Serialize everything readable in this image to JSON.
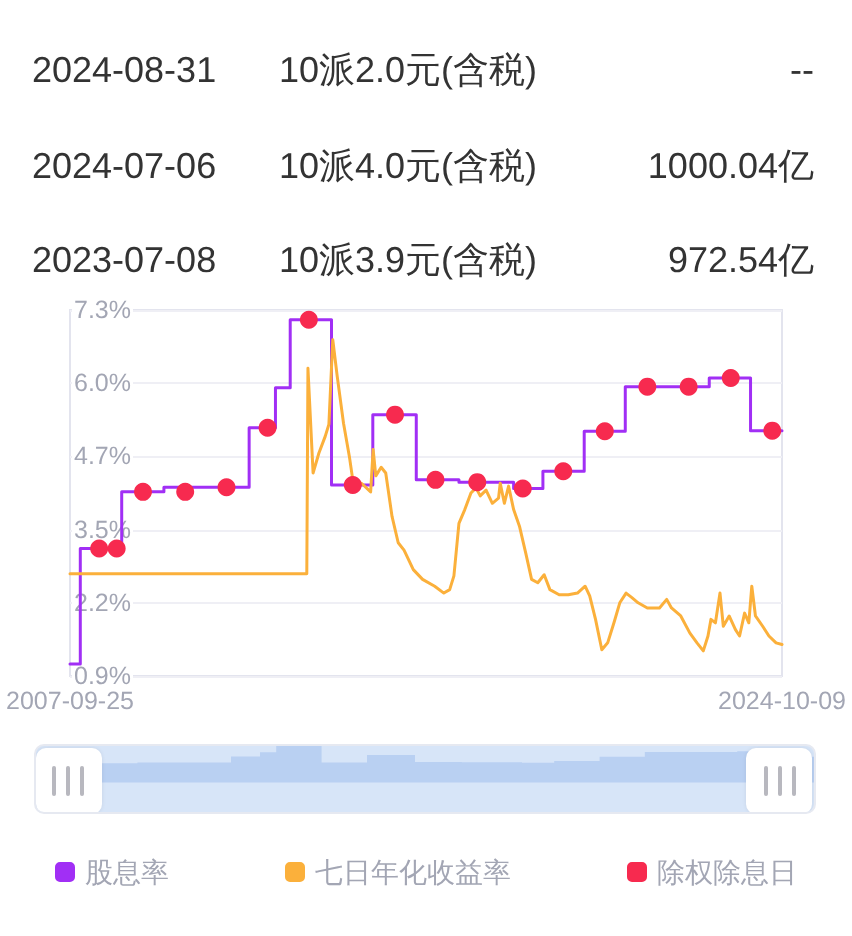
{
  "chart_data": [
    {
      "type": "other",
      "annotations": [
        "2024-08-31",
        "10派2.0元(含税)",
        "--",
        "2024-07-06",
        "10派4.0元(含税)",
        "1000.04亿",
        "2023-07-08",
        "10派3.9元(含税)",
        "972.54亿"
      ]
    },
    {
      "type": "line",
      "xlim": [
        "2007-09-25",
        "2024-10-09"
      ],
      "xticks": [
        "2007-09-25",
        "2024-10-09"
      ],
      "ylim": [
        0.9,
        7.3
      ],
      "yticks": [
        {
          "value": 0.9,
          "label": "0.9%"
        },
        {
          "value": 2.18,
          "label": "2.2%"
        },
        {
          "value": 3.46,
          "label": "3.5%"
        },
        {
          "value": 4.74,
          "label": "4.7%"
        },
        {
          "value": 6.02,
          "label": "6.0%"
        },
        {
          "value": 7.3,
          "label": "7.3%"
        }
      ],
      "grid": "y",
      "legend": "bottom",
      "series": [
        {
          "name": "股息率",
          "type": "step",
          "color": "#a12ff5",
          "x": [
            "2007-09-25",
            "2007-12-24",
            "2008-12-20",
            "2009-12-24",
            "2012-01-08",
            "2012-08-25",
            "2013-01-01",
            "2013-12-28",
            "2014-12-24",
            "2016-01-08",
            "2017-01-15",
            "2018-05-08",
            "2019-01-19",
            "2020-01-15",
            "2021-01-08",
            "2023-01-12",
            "2024-01-08",
            "2024-10-09"
          ],
          "values": [
            1.11,
            3.13,
            4.12,
            4.2,
            5.24,
            5.94,
            7.13,
            4.24,
            5.47,
            4.33,
            4.29,
            4.18,
            4.48,
            5.18,
            5.96,
            6.11,
            5.19,
            5.19
          ]
        },
        {
          "name": "七日年化收益率",
          "type": "line",
          "color": "#fbb03b",
          "x": [
            "2007-09-25",
            "2013-05-26",
            "2013-06-05",
            "2013-07-20",
            "2013-09-09",
            "2013-11-03",
            "2013-12-05",
            "2014-01-08",
            "2014-02-16",
            "2014-04-12",
            "2014-06-02",
            "2014-07-02",
            "2014-09-16",
            "2014-12-05",
            "2014-12-27",
            "2015-01-19",
            "2015-03-07",
            "2015-04-16",
            "2015-06-10",
            "2015-08-03",
            "2015-09-23",
            "2015-12-13",
            "2016-03-03",
            "2016-06-17",
            "2016-09-05",
            "2016-10-26",
            "2016-12-02",
            "2017-01-15",
            "2017-03-07",
            "2017-04-30",
            "2017-06-13",
            "2017-07-20",
            "2017-09-09",
            "2017-11-03",
            "2017-12-27",
            "2018-01-11",
            "2018-02-16",
            "2018-03-25",
            "2018-05-08",
            "2018-06-28",
            "2018-08-22",
            "2018-10-12",
            "2018-12-05",
            "2019-01-30",
            "2019-03-21",
            "2019-06-10",
            "2019-08-29",
            "2019-11-17",
            "2020-01-23",
            "2020-03-03",
            "2020-04-23",
            "2020-06-17",
            "2020-08-07",
            "2020-10-01",
            "2020-11-21",
            "2021-01-15",
            "2021-03-07",
            "2021-04-30",
            "2021-07-20",
            "2021-11-03",
            "2022-01-05",
            "2022-02-16",
            "2022-05-08",
            "2022-07-27",
            "2022-09-27",
            "2022-11-21",
            "2023-01-01",
            "2023-01-27",
            "2023-03-07",
            "2023-04-16",
            "2023-05-15",
            "2023-07-05",
            "2023-08-29",
            "2023-10-04",
            "2023-11-17",
            "2023-12-24",
            "2024-01-19",
            "2024-02-20",
            "2024-04-23",
            "2024-06-17",
            "2024-08-18",
            "2024-10-09"
          ],
          "values": [
            2.69,
            2.69,
            6.28,
            4.45,
            4.8,
            5.09,
            5.3,
            6.78,
            6.14,
            5.32,
            4.74,
            4.33,
            4.27,
            4.12,
            4.86,
            4.4,
            4.55,
            4.45,
            3.69,
            3.23,
            3.1,
            2.76,
            2.59,
            2.47,
            2.35,
            2.41,
            2.65,
            3.57,
            3.81,
            4.1,
            4.19,
            4.05,
            4.15,
            3.92,
            4.01,
            4.27,
            3.92,
            4.22,
            3.81,
            3.52,
            3.05,
            2.59,
            2.53,
            2.67,
            2.41,
            2.32,
            2.32,
            2.35,
            2.47,
            2.3,
            1.89,
            1.36,
            1.48,
            1.83,
            2.18,
            2.35,
            2.27,
            2.18,
            2.09,
            2.09,
            2.24,
            2.09,
            1.95,
            1.65,
            1.48,
            1.34,
            1.6,
            1.89,
            1.83,
            2.35,
            1.77,
            1.95,
            1.71,
            1.6,
            2.0,
            1.83,
            2.47,
            1.95,
            1.77,
            1.6,
            1.48,
            1.45
          ]
        },
        {
          "name": "除权除息日",
          "type": "scatter",
          "color": "#f72a4f",
          "marker": "circle",
          "x": [
            "2008-06-06",
            "2008-11-06",
            "2009-06-24",
            "2010-06-28",
            "2011-06-24",
            "2012-06-17",
            "2013-06-13",
            "2014-07-02",
            "2015-07-06",
            "2016-06-24",
            "2017-06-24",
            "2018-07-27",
            "2019-07-16",
            "2020-07-13",
            "2021-07-20",
            "2022-07-16",
            "2023-07-19",
            "2024-07-16"
          ],
          "values": [
            3.13,
            3.13,
            4.12,
            4.12,
            4.2,
            5.24,
            7.13,
            4.24,
            5.47,
            4.33,
            4.29,
            4.18,
            4.48,
            5.18,
            5.96,
            5.96,
            6.11,
            5.19
          ]
        }
      ]
    }
  ]
}
